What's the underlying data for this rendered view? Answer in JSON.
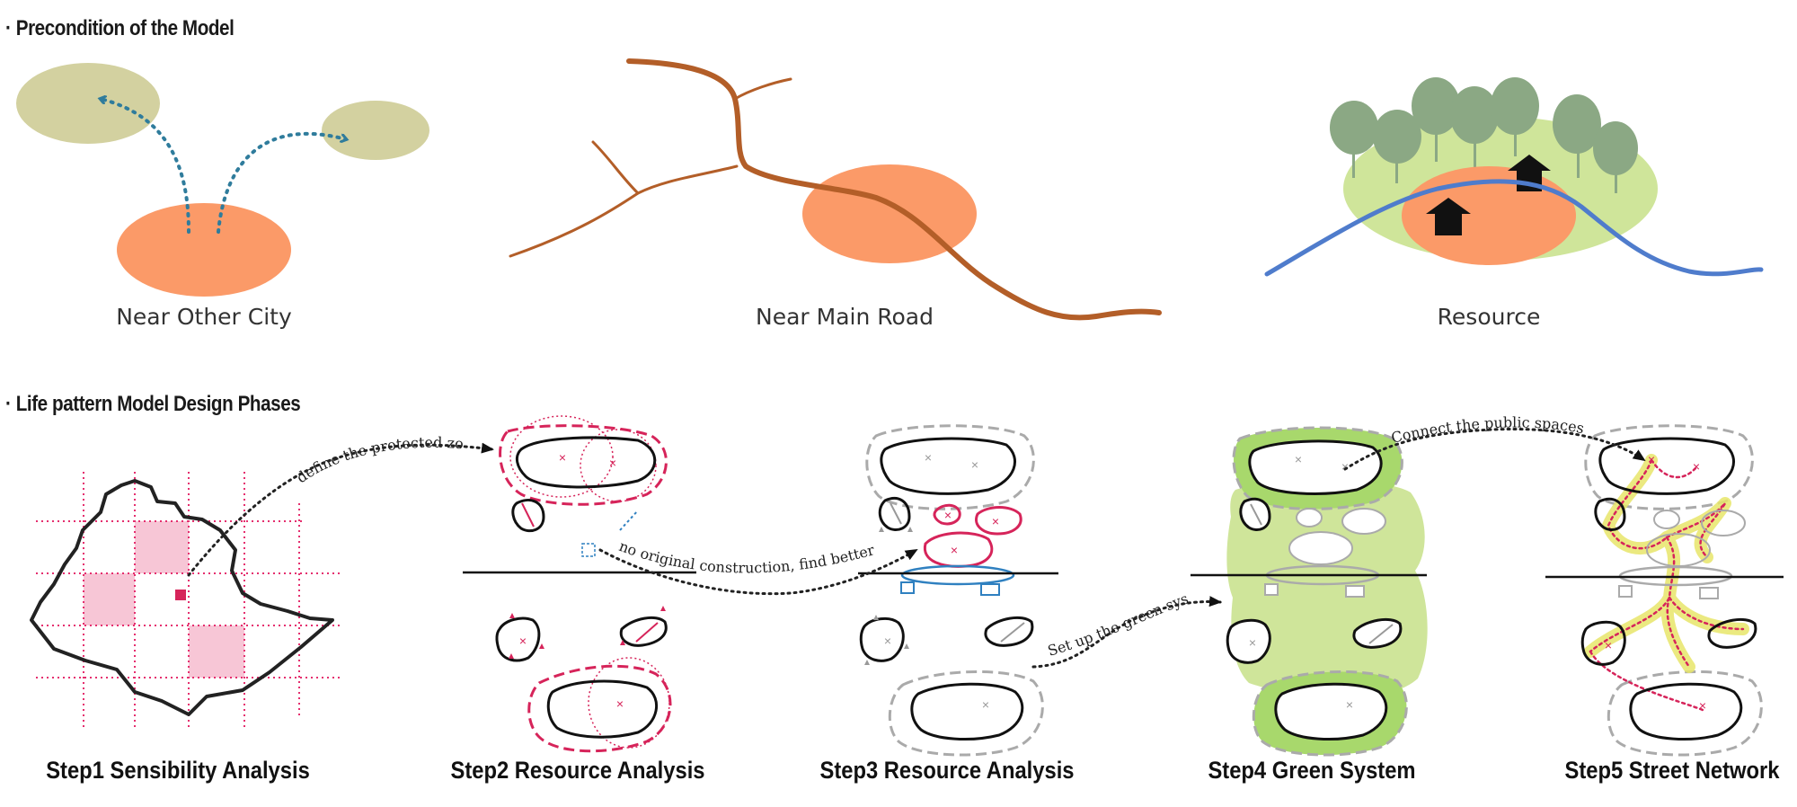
{
  "sections": {
    "precondition_title": "· Precondition of the Model",
    "phases_title": "· Life pattern Model Design Phases"
  },
  "preconditions": [
    {
      "label": "Near Other City"
    },
    {
      "label": "Near Main Road"
    },
    {
      "label": "Resource"
    }
  ],
  "steps": [
    {
      "label": "Step1  Sensibility Analysis"
    },
    {
      "label": "Step2  Resource Analysis"
    },
    {
      "label": "Step3  Resource Analysis"
    },
    {
      "label": "Step4  Green System"
    },
    {
      "label": "Step5  Street Network"
    }
  ],
  "annotations": {
    "define_zone": "define the protected zone",
    "no_construction": "no original construction, find better slope",
    "green_system": "Set up the green system",
    "connect_spaces": "Connect the public spaces"
  },
  "colors": {
    "city_fill": "#d3d1a0",
    "town_fill": "#fb9a68",
    "road": "#b35e28",
    "dotted_arrow": "#2f7c9c",
    "river": "#4f7ccc",
    "tree": "#8ba884",
    "green_area": "#cfe59a",
    "protected_pink": "#d6245a",
    "grid_pink": "#e52e6e",
    "highlight_cell": "#f7c6d6",
    "water_blue": "#2f80c0",
    "gray_dash": "#aaaaaa",
    "bright_green": "#a8d86c",
    "street_yellow": "#e8e66a"
  }
}
